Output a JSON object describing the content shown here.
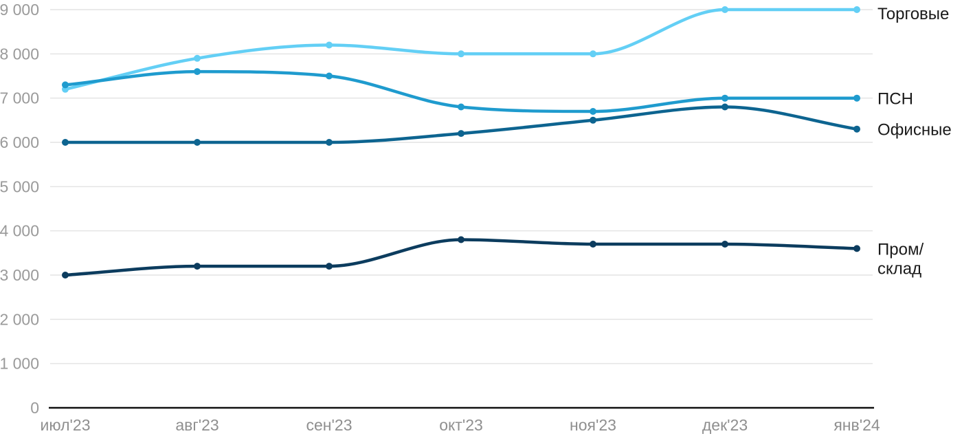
{
  "chart_data": {
    "type": "line",
    "categories": [
      "июл'23",
      "авг'23",
      "сен'23",
      "окт'23",
      "ноя'23",
      "дек'23",
      "янв'24"
    ],
    "series": [
      {
        "name": "Торговые",
        "label_lines": [
          "Торговые"
        ],
        "color": "#63CFF5",
        "values": [
          7200,
          7900,
          8200,
          8000,
          8000,
          9000,
          9000
        ]
      },
      {
        "name": "ПСН",
        "label_lines": [
          "ПСН"
        ],
        "color": "#1F9BCE",
        "values": [
          7300,
          7600,
          7500,
          6800,
          6700,
          7000,
          7000
        ]
      },
      {
        "name": "Офисные",
        "label_lines": [
          "Офисные"
        ],
        "color": "#0D6490",
        "values": [
          6000,
          6000,
          6000,
          6200,
          6500,
          6800,
          6300
        ]
      },
      {
        "name": "Пром/склад",
        "label_lines": [
          "Пром/",
          "склад"
        ],
        "color": "#0C3C5E",
        "values": [
          3000,
          3200,
          3200,
          3800,
          3700,
          3700,
          3600
        ]
      }
    ],
    "y_axis": {
      "min": 0,
      "max": 9000,
      "tick_step": 1000,
      "tick_labels": [
        "0",
        "1 000",
        "2 000",
        "3 000",
        "4 000",
        "5 000",
        "6 000",
        "7 000",
        "8 000",
        "9 000"
      ]
    },
    "grid": true,
    "legend_position": "right-of-last-point",
    "colors": {
      "gridline": "#E4E4E4",
      "axis_line": "#111111",
      "y_tick_text": "#9A9A9A",
      "x_tick_text": "#8F8F8F",
      "legend_text": "#1A1A1A",
      "background": "#FFFFFF"
    }
  }
}
